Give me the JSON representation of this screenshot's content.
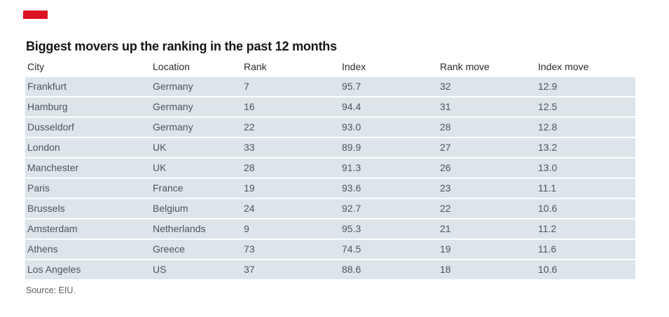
{
  "colors": {
    "accent_red": "#db1222",
    "row_band": "#dbe5ea"
  },
  "title": "Biggest movers up the ranking in the past 12 months",
  "source": "Source: EIU.",
  "chart_data": {
    "type": "table",
    "title": "Biggest movers up the ranking in the past 12 months",
    "columns": [
      "City",
      "Location",
      "Rank",
      "Index",
      "Rank move",
      "Index move"
    ],
    "rows": [
      [
        "Frankfurt",
        "Germany",
        "7",
        "95.7",
        "32",
        "12.9"
      ],
      [
        "Hamburg",
        "Germany",
        "16",
        "94.4",
        "31",
        "12.5"
      ],
      [
        "Dusseldorf",
        "Germany",
        "22",
        "93.0",
        "28",
        "12.8"
      ],
      [
        "London",
        "UK",
        "33",
        "89.9",
        "27",
        "13.2"
      ],
      [
        "Manchester",
        "UK",
        "28",
        "91.3",
        "26",
        "13.0"
      ],
      [
        "Paris",
        "France",
        "19",
        "93.6",
        "23",
        "11.1"
      ],
      [
        "Brussels",
        "Belgium",
        "24",
        "92.7",
        "22",
        "10.6"
      ],
      [
        "Amsterdam",
        "Netherlands",
        "9",
        "95.3",
        "21",
        "11.2"
      ],
      [
        "Athens",
        "Greece",
        "73",
        "74.5",
        "19",
        "11.6"
      ],
      [
        "Los Angeles",
        "US",
        "37",
        "88.6",
        "18",
        "10.6"
      ]
    ],
    "source_note": "Source: EIU."
  }
}
